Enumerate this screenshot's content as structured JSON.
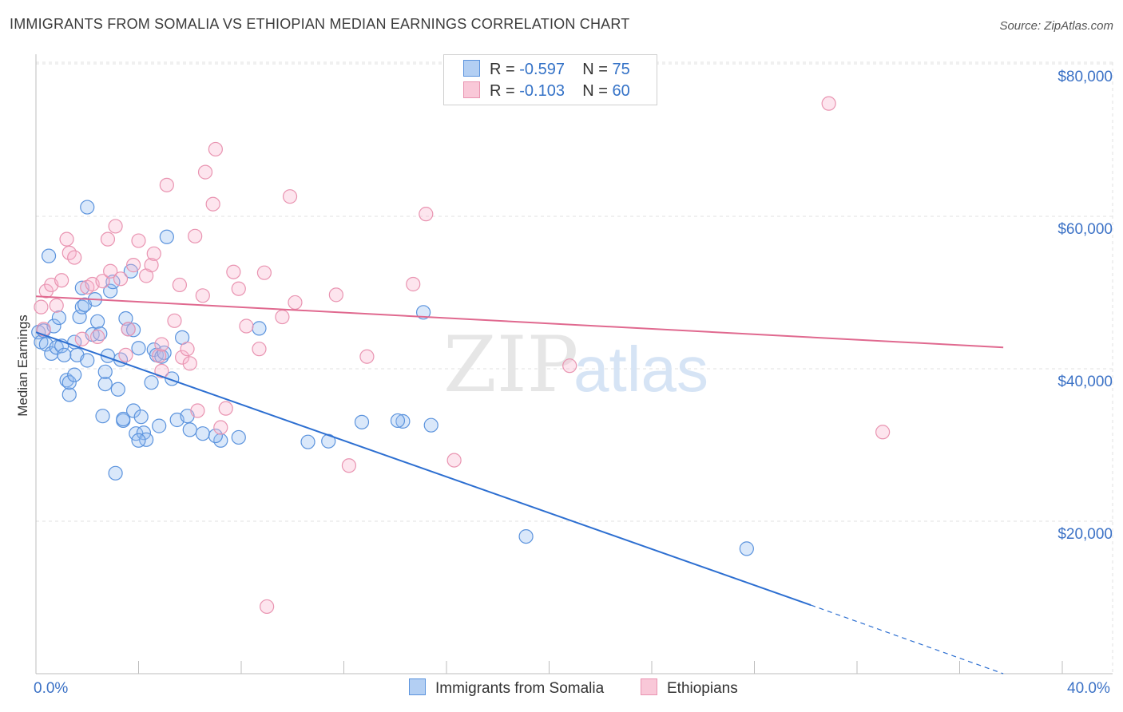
{
  "title": "IMMIGRANTS FROM SOMALIA VS ETHIOPIAN MEDIAN EARNINGS CORRELATION CHART",
  "source": "Source: ZipAtlas.com",
  "watermark": {
    "zip": "ZIP",
    "atlas": "atlas"
  },
  "legend": {
    "rows": [
      {
        "r_label": "R =",
        "r_value": "-0.597",
        "n_label": "N =",
        "n_value": "75"
      },
      {
        "r_label": "R =",
        "r_value": "-0.103",
        "n_label": "N =",
        "n_value": "60"
      }
    ]
  },
  "bottom_legend": [
    "Immigrants from Somalia",
    "Ethiopians"
  ],
  "colors": {
    "somalia": "#5b93dd",
    "somalia_fill": "rgba(150,190,240,0.35)",
    "somalia_line": "#2d6fd1",
    "ethiopians": "#e994b1",
    "ethiopians_fill": "rgba(248,180,205,0.35)",
    "ethiopians_line": "#e0698f",
    "tick_text": "#3c72c6",
    "grid": "#e1e1e1"
  },
  "chart_data": {
    "type": "scatter",
    "title": "IMMIGRANTS FROM SOMALIA VS ETHIOPIAN MEDIAN EARNINGS CORRELATION CHART",
    "xlabel": "",
    "ylabel": "Median Earnings",
    "xlim": [
      0,
      40
    ],
    "ylim": [
      0,
      82000
    ],
    "x_tick_labels": [
      "0.0%",
      "40.0%"
    ],
    "y_ticks": [
      20000,
      40000,
      60000,
      80000
    ],
    "y_tick_labels": [
      "$20,000",
      "$40,000",
      "$60,000",
      "$80,000"
    ],
    "grid": "horizontal dashed",
    "legend_position": "top-center",
    "series": [
      {
        "name": "Immigrants from Somalia",
        "R": -0.597,
        "N": 75,
        "trend": {
          "x": [
            0,
            30.2
          ],
          "y": [
            44800,
            9000
          ],
          "dashed_extension_to": [
            37.7,
            0
          ]
        },
        "points": [
          [
            0.1,
            44800
          ],
          [
            0.2,
            43500
          ],
          [
            0.3,
            45000
          ],
          [
            0.4,
            43200
          ],
          [
            0.5,
            54800
          ],
          [
            0.6,
            42000
          ],
          [
            0.7,
            45600
          ],
          [
            0.8,
            42800
          ],
          [
            0.9,
            46700
          ],
          [
            1.0,
            43000
          ],
          [
            1.1,
            41800
          ],
          [
            1.2,
            38500
          ],
          [
            1.3,
            36600
          ],
          [
            1.3,
            38200
          ],
          [
            1.5,
            39200
          ],
          [
            1.5,
            43500
          ],
          [
            1.6,
            41800
          ],
          [
            1.7,
            46800
          ],
          [
            1.8,
            48100
          ],
          [
            1.8,
            50600
          ],
          [
            1.9,
            48400
          ],
          [
            2.0,
            41100
          ],
          [
            2.0,
            61200
          ],
          [
            2.2,
            44500
          ],
          [
            2.3,
            49100
          ],
          [
            2.4,
            46200
          ],
          [
            2.5,
            44600
          ],
          [
            2.6,
            33800
          ],
          [
            2.7,
            38000
          ],
          [
            2.7,
            39600
          ],
          [
            2.8,
            41700
          ],
          [
            2.9,
            50200
          ],
          [
            3.0,
            51400
          ],
          [
            3.1,
            26300
          ],
          [
            3.2,
            37300
          ],
          [
            3.3,
            41200
          ],
          [
            3.4,
            33200
          ],
          [
            3.5,
            46600
          ],
          [
            3.6,
            45200
          ],
          [
            3.7,
            52800
          ],
          [
            3.8,
            34500
          ],
          [
            3.9,
            31500
          ],
          [
            4.0,
            42700
          ],
          [
            4.1,
            33700
          ],
          [
            4.2,
            31600
          ],
          [
            4.3,
            30700
          ],
          [
            4.5,
            38200
          ],
          [
            4.6,
            42500
          ],
          [
            4.7,
            41800
          ],
          [
            4.8,
            32500
          ],
          [
            4.9,
            41600
          ],
          [
            5.0,
            42100
          ],
          [
            5.1,
            57300
          ],
          [
            5.3,
            38700
          ],
          [
            5.5,
            33300
          ],
          [
            5.7,
            44100
          ],
          [
            6.0,
            32000
          ],
          [
            6.5,
            31500
          ],
          [
            7.2,
            30600
          ],
          [
            7.9,
            31000
          ],
          [
            8.7,
            45300
          ],
          [
            10.6,
            30400
          ],
          [
            11.4,
            30500
          ],
          [
            12.7,
            33000
          ],
          [
            14.3,
            33100
          ],
          [
            15.1,
            47400
          ],
          [
            15.4,
            32600
          ],
          [
            14.1,
            33200
          ],
          [
            7.0,
            31200
          ],
          [
            5.9,
            33800
          ],
          [
            3.4,
            33400
          ],
          [
            4.0,
            30600
          ],
          [
            19.1,
            18000
          ],
          [
            27.7,
            16400
          ],
          [
            3.8,
            45100
          ]
        ]
      },
      {
        "name": "Ethiopians",
        "R": -0.103,
        "N": 60,
        "trend": {
          "x": [
            0,
            37.7
          ],
          "y": [
            49500,
            42800
          ]
        },
        "points": [
          [
            0.2,
            48100
          ],
          [
            0.3,
            45200
          ],
          [
            0.4,
            50200
          ],
          [
            0.6,
            51000
          ],
          [
            0.8,
            48300
          ],
          [
            1.0,
            51600
          ],
          [
            1.2,
            57000
          ],
          [
            1.3,
            55200
          ],
          [
            1.5,
            54600
          ],
          [
            1.8,
            43900
          ],
          [
            2.0,
            50700
          ],
          [
            2.2,
            51100
          ],
          [
            2.4,
            44200
          ],
          [
            2.6,
            51500
          ],
          [
            2.8,
            57000
          ],
          [
            2.9,
            52800
          ],
          [
            3.1,
            58700
          ],
          [
            3.3,
            51800
          ],
          [
            3.5,
            41800
          ],
          [
            3.6,
            45200
          ],
          [
            3.8,
            53600
          ],
          [
            4.0,
            56800
          ],
          [
            4.3,
            52200
          ],
          [
            4.5,
            53600
          ],
          [
            4.6,
            55100
          ],
          [
            4.8,
            41700
          ],
          [
            4.9,
            43200
          ],
          [
            5.1,
            64100
          ],
          [
            5.4,
            46300
          ],
          [
            5.6,
            51000
          ],
          [
            5.7,
            41500
          ],
          [
            5.9,
            42600
          ],
          [
            6.0,
            40700
          ],
          [
            6.2,
            57400
          ],
          [
            6.3,
            34500
          ],
          [
            6.5,
            49600
          ],
          [
            6.6,
            65800
          ],
          [
            6.9,
            61600
          ],
          [
            7.0,
            68800
          ],
          [
            7.2,
            32300
          ],
          [
            7.4,
            34800
          ],
          [
            7.7,
            52700
          ],
          [
            7.9,
            50500
          ],
          [
            8.2,
            45600
          ],
          [
            8.7,
            42600
          ],
          [
            8.9,
            52600
          ],
          [
            9.0,
            8800
          ],
          [
            9.6,
            46800
          ],
          [
            9.9,
            62600
          ],
          [
            10.1,
            48700
          ],
          [
            11.7,
            49700
          ],
          [
            12.2,
            27300
          ],
          [
            12.9,
            41600
          ],
          [
            14.7,
            51100
          ],
          [
            15.2,
            60300
          ],
          [
            16.3,
            28000
          ],
          [
            20.8,
            40400
          ],
          [
            30.9,
            74800
          ],
          [
            33.0,
            31700
          ],
          [
            4.9,
            39700
          ]
        ]
      }
    ]
  }
}
